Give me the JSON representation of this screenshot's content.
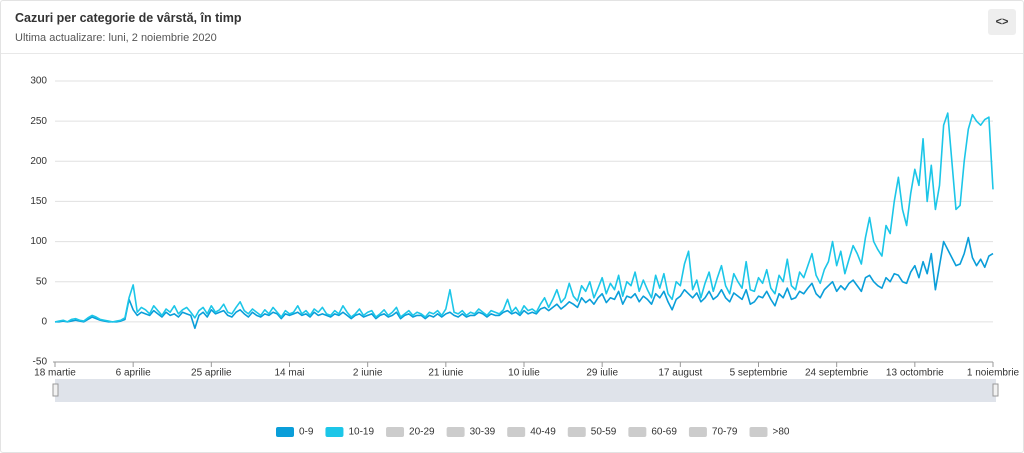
{
  "header": {
    "title": "Cazuri per categorie de vârstă, în timp",
    "subtitle": "Ultima actualizare: luni, 2 noiembrie 2020"
  },
  "chart_data": {
    "type": "line",
    "categories": [
      "18 martie",
      null,
      null,
      null,
      null,
      null,
      null,
      null,
      null,
      null,
      null,
      null,
      null,
      null,
      null,
      null,
      null,
      null,
      null,
      "6 aprilie",
      null,
      null,
      null,
      null,
      null,
      null,
      null,
      null,
      null,
      null,
      null,
      null,
      null,
      null,
      null,
      null,
      null,
      null,
      "25 aprilie",
      null,
      null,
      null,
      null,
      null,
      null,
      null,
      null,
      null,
      null,
      null,
      null,
      null,
      null,
      null,
      null,
      null,
      null,
      "14 mai",
      null,
      null,
      null,
      null,
      null,
      null,
      null,
      null,
      null,
      null,
      null,
      null,
      null,
      null,
      null,
      null,
      null,
      null,
      "2 iunie",
      null,
      null,
      null,
      null,
      null,
      null,
      null,
      null,
      null,
      null,
      null,
      null,
      null,
      null,
      null,
      null,
      null,
      null,
      "21 iunie",
      null,
      null,
      null,
      null,
      null,
      null,
      null,
      null,
      null,
      null,
      null,
      null,
      null,
      null,
      null,
      null,
      null,
      null,
      "10 iulie",
      null,
      null,
      null,
      null,
      null,
      null,
      null,
      null,
      null,
      null,
      null,
      null,
      null,
      null,
      null,
      null,
      null,
      null,
      "29 iulie",
      null,
      null,
      null,
      null,
      null,
      null,
      null,
      null,
      null,
      null,
      null,
      null,
      null,
      null,
      null,
      null,
      null,
      null,
      "17 august",
      null,
      null,
      null,
      null,
      null,
      null,
      null,
      null,
      null,
      null,
      null,
      null,
      null,
      null,
      null,
      null,
      null,
      null,
      "5 septembrie",
      null,
      null,
      null,
      null,
      null,
      null,
      null,
      null,
      null,
      null,
      null,
      null,
      null,
      null,
      null,
      null,
      null,
      null,
      "24 septembrie",
      null,
      null,
      null,
      null,
      null,
      null,
      null,
      null,
      null,
      null,
      null,
      null,
      null,
      null,
      null,
      null,
      null,
      null,
      "13 octombrie",
      null,
      null,
      null,
      null,
      null,
      null,
      null,
      null,
      null,
      null,
      null,
      null,
      null,
      null,
      null,
      null,
      null,
      null,
      "1 noiembrie"
    ],
    "series": [
      {
        "name": "0-9",
        "color": "#0a9ed9",
        "values": [
          0,
          0,
          1,
          0,
          1,
          2,
          1,
          0,
          3,
          6,
          4,
          2,
          1,
          0,
          0,
          0,
          1,
          3,
          28,
          15,
          8,
          12,
          10,
          8,
          14,
          10,
          6,
          12,
          8,
          10,
          6,
          12,
          10,
          8,
          -8,
          8,
          12,
          6,
          15,
          10,
          12,
          14,
          8,
          6,
          12,
          15,
          10,
          6,
          12,
          8,
          6,
          10,
          8,
          12,
          10,
          4,
          10,
          8,
          10,
          12,
          8,
          10,
          6,
          12,
          8,
          10,
          8,
          6,
          10,
          8,
          12,
          8,
          4,
          8,
          10,
          6,
          8,
          10,
          4,
          8,
          10,
          6,
          8,
          12,
          4,
          8,
          10,
          6,
          8,
          8,
          4,
          8,
          6,
          10,
          6,
          10,
          12,
          8,
          6,
          10,
          6,
          8,
          8,
          12,
          10,
          6,
          10,
          8,
          8,
          12,
          14,
          10,
          12,
          8,
          14,
          10,
          12,
          10,
          16,
          18,
          14,
          18,
          22,
          16,
          20,
          25,
          22,
          18,
          30,
          24,
          28,
          22,
          30,
          35,
          24,
          30,
          28,
          38,
          22,
          32,
          30,
          35,
          25,
          32,
          28,
          22,
          35,
          30,
          38,
          25,
          15,
          28,
          32,
          40,
          35,
          30,
          36,
          25,
          30,
          38,
          28,
          32,
          40,
          30,
          25,
          36,
          32,
          28,
          40,
          22,
          25,
          32,
          30,
          38,
          28,
          20,
          35,
          30,
          42,
          28,
          30,
          38,
          35,
          42,
          48,
          35,
          30,
          40,
          45,
          50,
          38,
          45,
          40,
          48,
          52,
          45,
          38,
          55,
          58,
          50,
          45,
          42,
          55,
          50,
          60,
          58,
          50,
          48,
          62,
          70,
          55,
          75,
          60,
          85,
          40,
          70,
          100,
          90,
          80,
          70,
          72,
          85,
          105,
          80,
          70,
          78,
          68,
          82,
          85
        ]
      },
      {
        "name": "10-19",
        "color": "#1cc6e8",
        "values": [
          0,
          1,
          2,
          0,
          3,
          4,
          2,
          1,
          5,
          8,
          6,
          3,
          2,
          1,
          0,
          1,
          2,
          5,
          30,
          46,
          12,
          18,
          15,
          10,
          20,
          14,
          8,
          16,
          12,
          20,
          10,
          15,
          18,
          12,
          5,
          14,
          18,
          10,
          20,
          12,
          15,
          22,
          12,
          10,
          18,
          25,
          14,
          10,
          16,
          12,
          8,
          15,
          10,
          18,
          12,
          6,
          14,
          10,
          12,
          20,
          10,
          14,
          8,
          16,
          12,
          18,
          10,
          8,
          14,
          10,
          20,
          12,
          6,
          10,
          16,
          8,
          12,
          14,
          6,
          10,
          15,
          8,
          12,
          18,
          6,
          10,
          14,
          8,
          12,
          10,
          6,
          12,
          10,
          14,
          8,
          16,
          40,
          12,
          10,
          14,
          8,
          12,
          10,
          16,
          12,
          8,
          14,
          12,
          10,
          15,
          28,
          12,
          18,
          10,
          20,
          14,
          16,
          12,
          22,
          30,
          18,
          28,
          40,
          24,
          30,
          48,
          32,
          26,
          45,
          38,
          50,
          30,
          42,
          55,
          35,
          48,
          40,
          58,
          32,
          50,
          45,
          62,
          38,
          52,
          40,
          30,
          58,
          42,
          60,
          35,
          28,
          50,
          45,
          72,
          88,
          40,
          52,
          30,
          48,
          62,
          38,
          55,
          70,
          45,
          35,
          60,
          50,
          42,
          75,
          40,
          38,
          55,
          48,
          65,
          42,
          35,
          58,
          50,
          78,
          45,
          40,
          62,
          55,
          70,
          85,
          58,
          48,
          65,
          75,
          100,
          70,
          88,
          60,
          78,
          95,
          85,
          72,
          105,
          130,
          100,
          90,
          82,
          120,
          110,
          150,
          180,
          140,
          120,
          160,
          190,
          170,
          228,
          150,
          195,
          140,
          170,
          245,
          260,
          200,
          140,
          145,
          200,
          240,
          258,
          250,
          245,
          252,
          255,
          165
        ]
      }
    ],
    "hidden_series": [
      "20-29",
      "30-39",
      "40-49",
      "50-59",
      "60-69",
      "70-79",
      ">80"
    ],
    "ylim": [
      -50,
      300
    ],
    "yticks": [
      -50,
      0,
      50,
      100,
      150,
      200,
      250,
      300
    ],
    "grid": true
  }
}
